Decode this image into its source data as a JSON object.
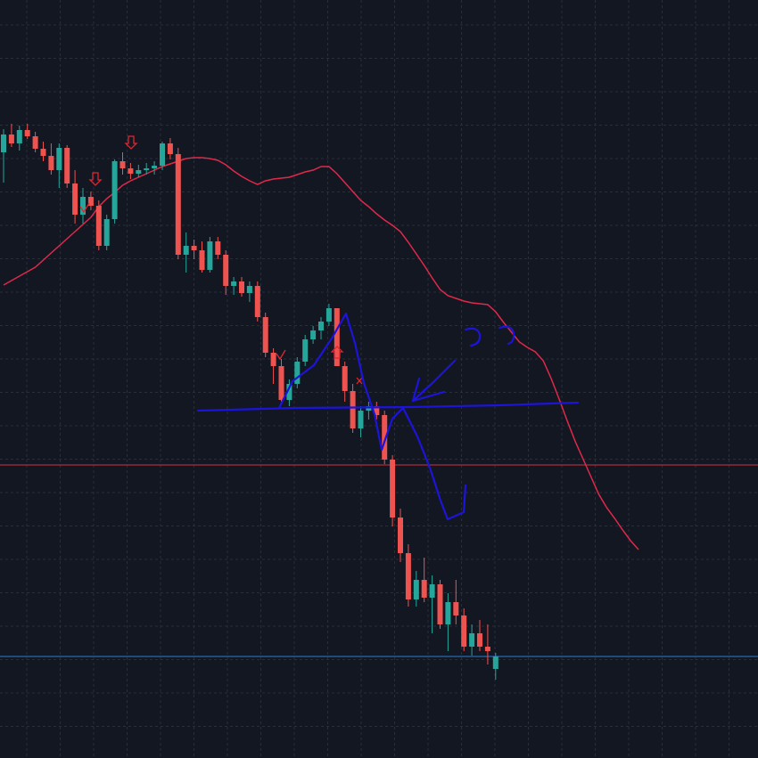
{
  "chart_data": {
    "type": "candlestick",
    "ylim": [
      0,
      851
    ],
    "grid": true,
    "up_color": "#26a69a",
    "down_color": "#ef5350",
    "candles": {
      "open": [
        680,
        700,
        690,
        705,
        698,
        684,
        676,
        660,
        685,
        645,
        610,
        630,
        620,
        575,
        605,
        670,
        662,
        656,
        660,
        662,
        665,
        690,
        678,
        565,
        575,
        570,
        548,
        580,
        565,
        530,
        535,
        522,
        530,
        495,
        455,
        440,
        402,
        420,
        445,
        470,
        480,
        490,
        505,
        440,
        412,
        370,
        390,
        395,
        385,
        335,
        270,
        230,
        178,
        200,
        180,
        195,
        150,
        175,
        160,
        125,
        140,
        125,
        100
      ],
      "high": [
        706,
        712,
        710,
        712,
        703,
        692,
        690,
        690,
        688,
        660,
        640,
        636,
        626,
        610,
        672,
        680,
        668,
        666,
        668,
        670,
        692,
        696,
        685,
        590,
        582,
        580,
        585,
        585,
        570,
        540,
        540,
        535,
        535,
        500,
        460,
        448,
        425,
        450,
        475,
        485,
        495,
        510,
        505,
        445,
        420,
        395,
        400,
        400,
        390,
        340,
        280,
        240,
        210,
        225,
        205,
        200,
        185,
        200,
        168,
        150,
        155,
        150,
        118
      ],
      "low": [
        646,
        686,
        682,
        695,
        680,
        670,
        655,
        640,
        640,
        600,
        600,
        615,
        570,
        570,
        600,
        655,
        650,
        652,
        655,
        655,
        660,
        672,
        560,
        545,
        560,
        545,
        545,
        560,
        520,
        520,
        518,
        512,
        490,
        450,
        420,
        400,
        395,
        415,
        440,
        465,
        470,
        485,
        440,
        400,
        365,
        360,
        380,
        380,
        330,
        260,
        220,
        170,
        170,
        175,
        140,
        145,
        120,
        150,
        120,
        115,
        120,
        105,
        88
      ],
      "close": [
        700,
        690,
        705,
        698,
        684,
        676,
        660,
        685,
        645,
        610,
        630,
        620,
        575,
        605,
        670,
        662,
        656,
        660,
        662,
        665,
        690,
        678,
        565,
        575,
        570,
        548,
        580,
        565,
        530,
        535,
        522,
        530,
        495,
        455,
        440,
        402,
        420,
        445,
        470,
        480,
        490,
        505,
        440,
        412,
        370,
        390,
        395,
        385,
        335,
        270,
        230,
        178,
        200,
        180,
        195,
        150,
        175,
        160,
        125,
        140,
        125,
        120,
        114
      ]
    },
    "moving_average": {
      "color": "#e0294a",
      "values": [
        531,
        536,
        541,
        546,
        551,
        559,
        567,
        575,
        583,
        591,
        599,
        607,
        619,
        628,
        635,
        643,
        648,
        652,
        656,
        660,
        664,
        667,
        670,
        673,
        674,
        674,
        673,
        671,
        666,
        659,
        653,
        648,
        644,
        648,
        650,
        651,
        652,
        655,
        658,
        660,
        664,
        664,
        656,
        646,
        636,
        626,
        619,
        611,
        604,
        598,
        591,
        579,
        566,
        553,
        539,
        526,
        519,
        516,
        513,
        511,
        510,
        509,
        501,
        489,
        478,
        467,
        461,
        456,
        446,
        426,
        403,
        379,
        356,
        336,
        316,
        296,
        281,
        269,
        256,
        244,
        234
      ]
    },
    "hlines": [
      {
        "value": 329,
        "color": "#d3323f"
      },
      {
        "value": 114,
        "color": "#2a7fd4"
      }
    ]
  }
}
